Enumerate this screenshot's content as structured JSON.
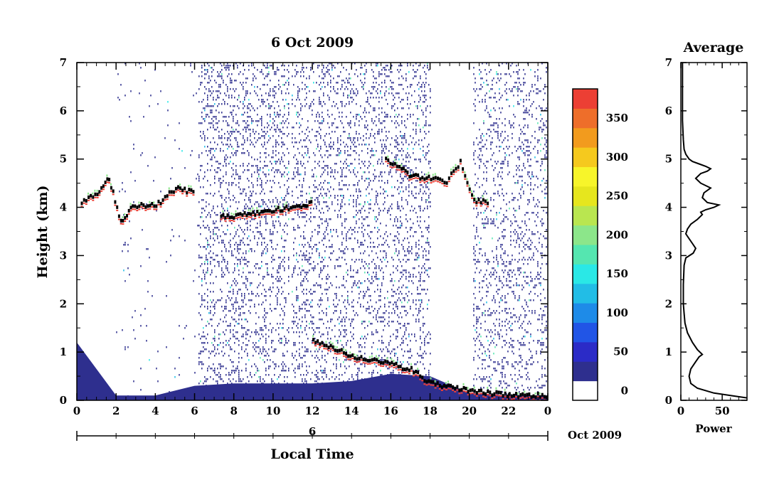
{
  "chart_data": [
    {
      "type": "heatmap",
      "title": "6 Oct 2009",
      "xlabel": "Local Time",
      "ylabel": "Height (km)",
      "xlim": [
        0,
        24
      ],
      "ylim": [
        0,
        7
      ],
      "x_ticks": [
        "0",
        "2",
        "4",
        "6",
        "8",
        "10",
        "12",
        "14",
        "16",
        "18",
        "20",
        "22",
        "0"
      ],
      "y_ticks": [
        "0",
        "1",
        "2",
        "3",
        "4",
        "5",
        "6",
        "7"
      ],
      "date_axis": {
        "day_label": "6",
        "month_label": "Oct 2009"
      },
      "layers": [
        {
          "x": [
            0,
            2,
            4,
            6,
            8,
            10,
            12,
            14,
            16,
            18,
            20,
            22,
            24
          ],
          "y": [
            1.2,
            0.1,
            0.1,
            0.3,
            0.35,
            0.35,
            0.35,
            0.4,
            0.55,
            0.5,
            0.15,
            0.1,
            0.1
          ]
        }
      ],
      "features": [
        {
          "name": "cloud-layer-early",
          "points": [
            [
              0.2,
              4.1
            ],
            [
              1.0,
              4.3
            ],
            [
              1.6,
              4.6
            ],
            [
              2.2,
              3.7
            ],
            [
              2.8,
              4.05
            ],
            [
              4.0,
              4.05
            ],
            [
              5.0,
              4.4
            ],
            [
              6.0,
              4.3
            ]
          ]
        },
        {
          "name": "cloud-layer-mid",
          "points": [
            [
              7.3,
              3.8
            ],
            [
              8.5,
              3.85
            ],
            [
              11.6,
              4.05
            ],
            [
              12.0,
              4.1
            ]
          ]
        },
        {
          "name": "cloud-layer-late",
          "points": [
            [
              15.7,
              5.0
            ],
            [
              16.5,
              4.8
            ],
            [
              17.0,
              4.65
            ],
            [
              18.0,
              4.6
            ],
            [
              18.8,
              4.55
            ],
            [
              19.5,
              4.95
            ],
            [
              20.2,
              4.15
            ],
            [
              21.0,
              4.1
            ]
          ]
        },
        {
          "name": "boundary-layer",
          "points": [
            [
              12.0,
              1.25
            ],
            [
              13.0,
              1.1
            ],
            [
              14.0,
              0.9
            ],
            [
              15.0,
              0.85
            ],
            [
              17.0,
              0.65
            ],
            [
              18.0,
              0.35
            ],
            [
              19.0,
              0.3
            ],
            [
              20.0,
              0.2
            ],
            [
              22.0,
              0.12
            ],
            [
              24.0,
              0.1
            ]
          ]
        }
      ],
      "colorbar": {
        "ticks": [
          "0",
          "50",
          "100",
          "150",
          "200",
          "250",
          "300",
          "350"
        ],
        "colors": [
          "#ffffff",
          "#2e2f8e",
          "#2b2bc7",
          "#2155e6",
          "#1e8be8",
          "#22bde6",
          "#2ae8e6",
          "#55e6b0",
          "#8ce68a",
          "#b9e650",
          "#e6e61e",
          "#f7f52a",
          "#f5c91e",
          "#f29b1e",
          "#ee6e2a",
          "#ec3f34"
        ]
      }
    },
    {
      "type": "line",
      "title": "Average",
      "xlabel": "Power",
      "xlim": [
        0,
        80
      ],
      "ylim": [
        0,
        7
      ],
      "x_ticks": [
        "0",
        "50"
      ],
      "y_ticks": [
        "0",
        "1",
        "2",
        "3",
        "4",
        "5",
        "6",
        "7"
      ],
      "series": [
        {
          "x": [
            80,
            60,
            40,
            20,
            12,
            10,
            12,
            18,
            22,
            26,
            20,
            14,
            8,
            5,
            4,
            3,
            3,
            4,
            6,
            15,
            18,
            14,
            10,
            6,
            8,
            12,
            20,
            26,
            24,
            30,
            40,
            46,
            32,
            26,
            28,
            36,
            24,
            18,
            24,
            32,
            36,
            30,
            22,
            14,
            10,
            8,
            6,
            4,
            3,
            2,
            2,
            2
          ],
          "y": [
            0.05,
            0.1,
            0.15,
            0.25,
            0.35,
            0.5,
            0.65,
            0.8,
            0.9,
            0.95,
            1.05,
            1.2,
            1.4,
            1.6,
            1.8,
            2.0,
            2.4,
            2.8,
            2.95,
            3.05,
            3.15,
            3.25,
            3.35,
            3.45,
            3.55,
            3.65,
            3.75,
            3.85,
            3.9,
            3.95,
            4.0,
            4.05,
            4.1,
            4.2,
            4.3,
            4.4,
            4.5,
            4.6,
            4.7,
            4.75,
            4.8,
            4.85,
            4.9,
            4.95,
            5.0,
            5.05,
            5.1,
            5.2,
            5.4,
            5.8,
            6.5,
            7.0
          ]
        }
      ]
    }
  ]
}
